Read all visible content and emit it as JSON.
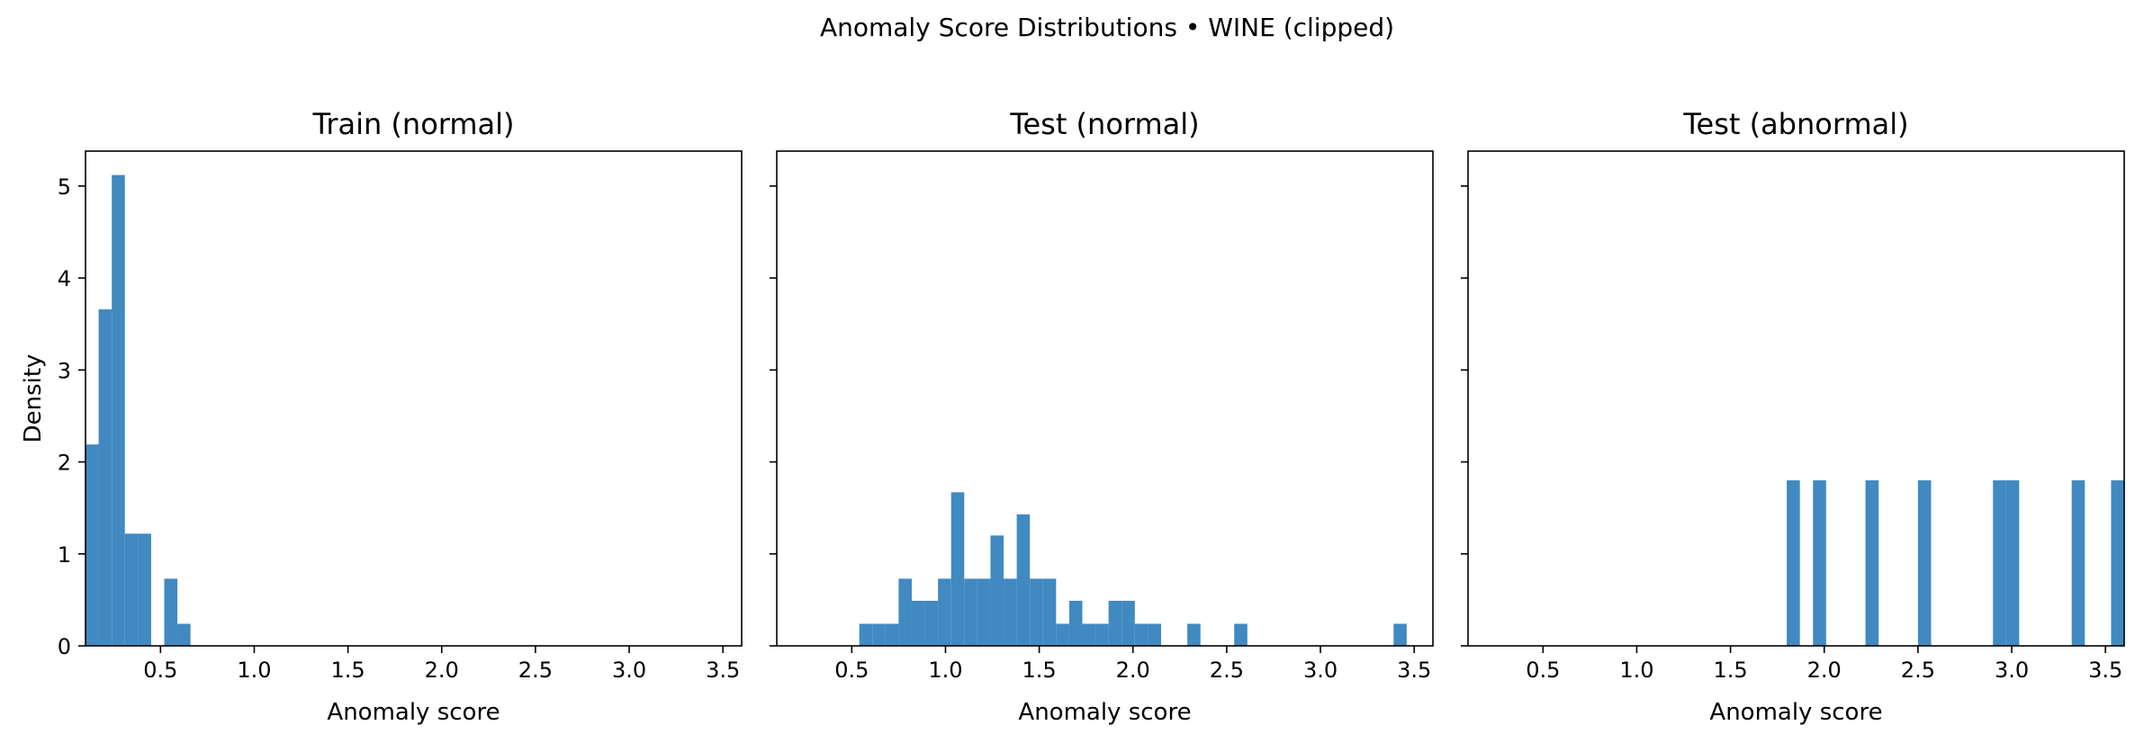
{
  "title": "Anomaly Score Distributions • WINE (clipped)",
  "colors": {
    "bar": "#4189c1",
    "axis": "#000000",
    "background": "#ffffff"
  },
  "chart_data": [
    {
      "type": "bar",
      "title": "Train (normal)",
      "xlabel": "Anomaly score",
      "ylabel": "Density",
      "xlim": [
        0.1,
        3.6
      ],
      "ylim": [
        0,
        5.38
      ],
      "xticks": [
        "0.5",
        "1.0",
        "1.5",
        "2.0",
        "2.5",
        "3.0",
        "3.5"
      ],
      "yticks": [
        "0",
        "1",
        "2",
        "3",
        "4",
        "5"
      ],
      "grid": false,
      "bins": [
        {
          "x0": 0.1,
          "x1": 0.17,
          "value": 2.19
        },
        {
          "x0": 0.17,
          "x1": 0.24,
          "value": 3.66
        },
        {
          "x0": 0.24,
          "x1": 0.31,
          "value": 5.12
        },
        {
          "x0": 0.31,
          "x1": 0.38,
          "value": 1.22
        },
        {
          "x0": 0.38,
          "x1": 0.45,
          "value": 1.22
        },
        {
          "x0": 0.45,
          "x1": 0.52,
          "value": 0
        },
        {
          "x0": 0.52,
          "x1": 0.59,
          "value": 0.73
        },
        {
          "x0": 0.59,
          "x1": 0.66,
          "value": 0.24
        }
      ]
    },
    {
      "type": "bar",
      "title": "Test (normal)",
      "xlabel": "Anomaly score",
      "xlim": [
        0.1,
        3.6
      ],
      "ylim": [
        0,
        5.38
      ],
      "xticks": [
        "0.5",
        "1.0",
        "1.5",
        "2.0",
        "2.5",
        "3.0",
        "3.5"
      ],
      "grid": false,
      "bins": [
        {
          "x0": 0.54,
          "x1": 0.61,
          "value": 0.24
        },
        {
          "x0": 0.61,
          "x1": 0.68,
          "value": 0.24
        },
        {
          "x0": 0.68,
          "x1": 0.75,
          "value": 0.24
        },
        {
          "x0": 0.75,
          "x1": 0.82,
          "value": 0.73
        },
        {
          "x0": 0.82,
          "x1": 0.89,
          "value": 0.49
        },
        {
          "x0": 0.89,
          "x1": 0.96,
          "value": 0.49
        },
        {
          "x0": 0.96,
          "x1": 1.03,
          "value": 0.73
        },
        {
          "x0": 1.03,
          "x1": 1.1,
          "value": 1.67
        },
        {
          "x0": 1.1,
          "x1": 1.17,
          "value": 0.73
        },
        {
          "x0": 1.17,
          "x1": 1.24,
          "value": 0.73
        },
        {
          "x0": 1.24,
          "x1": 1.31,
          "value": 1.2
        },
        {
          "x0": 1.31,
          "x1": 1.38,
          "value": 0.73
        },
        {
          "x0": 1.38,
          "x1": 1.45,
          "value": 1.43
        },
        {
          "x0": 1.45,
          "x1": 1.52,
          "value": 0.73
        },
        {
          "x0": 1.52,
          "x1": 1.59,
          "value": 0.73
        },
        {
          "x0": 1.59,
          "x1": 1.66,
          "value": 0.24
        },
        {
          "x0": 1.66,
          "x1": 1.73,
          "value": 0.49
        },
        {
          "x0": 1.73,
          "x1": 1.8,
          "value": 0.24
        },
        {
          "x0": 1.8,
          "x1": 1.87,
          "value": 0.24
        },
        {
          "x0": 1.87,
          "x1": 1.94,
          "value": 0.49
        },
        {
          "x0": 1.94,
          "x1": 2.01,
          "value": 0.49
        },
        {
          "x0": 2.01,
          "x1": 2.08,
          "value": 0.24
        },
        {
          "x0": 2.08,
          "x1": 2.15,
          "value": 0.24
        },
        {
          "x0": 2.29,
          "x1": 2.36,
          "value": 0.24
        },
        {
          "x0": 2.54,
          "x1": 2.61,
          "value": 0.24
        },
        {
          "x0": 3.39,
          "x1": 3.46,
          "value": 0.24
        }
      ]
    },
    {
      "type": "bar",
      "title": "Test (abnormal)",
      "xlabel": "Anomaly score",
      "xlim": [
        0.1,
        3.6
      ],
      "ylim": [
        0,
        5.38
      ],
      "xticks": [
        "0.5",
        "1.0",
        "1.5",
        "2.0",
        "2.5",
        "3.0",
        "3.5"
      ],
      "grid": false,
      "bins": [
        {
          "x0": 1.8,
          "x1": 1.87,
          "value": 1.8
        },
        {
          "x0": 1.94,
          "x1": 2.01,
          "value": 1.8
        },
        {
          "x0": 2.22,
          "x1": 2.29,
          "value": 1.8
        },
        {
          "x0": 2.5,
          "x1": 2.57,
          "value": 1.8
        },
        {
          "x0": 2.9,
          "x1": 2.97,
          "value": 1.8
        },
        {
          "x0": 2.97,
          "x1": 3.04,
          "value": 1.8
        },
        {
          "x0": 3.32,
          "x1": 3.39,
          "value": 1.8
        },
        {
          "x0": 3.53,
          "x1": 3.6,
          "value": 1.8
        }
      ]
    }
  ]
}
